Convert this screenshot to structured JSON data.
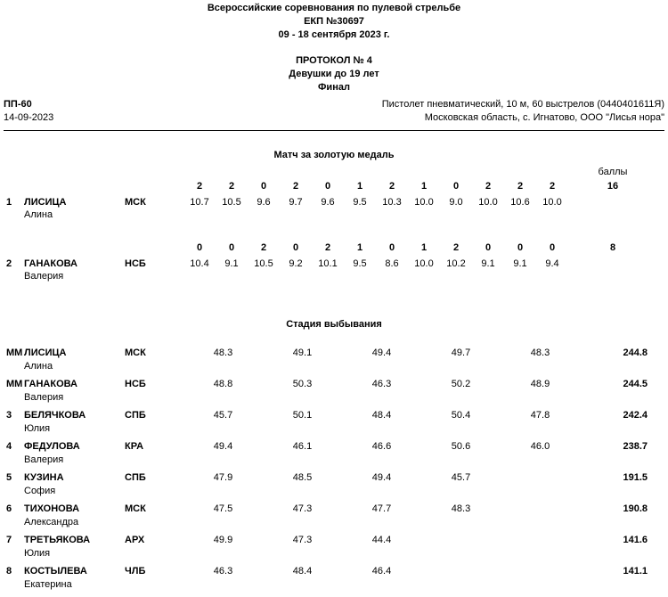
{
  "header": {
    "line1": "Всероссийские соревнования по пулевой стрельбе",
    "line2": "ЕКП №30697",
    "line3": "09 - 18 сентября 2023 г.",
    "protocol": "ПРОТОКОЛ № 4",
    "category": "Девушки до 19 лет",
    "stage": "Финал"
  },
  "info": {
    "event_code": "ПП-60",
    "date": "14-09-2023",
    "discipline": "Пистолет пневматический, 10 м, 60 выстрелов (0440401611Я)",
    "location": "Московская область, с. Игнатово, ООО \"Лисья нора\""
  },
  "gold_match": {
    "title": "Матч за золотую медаль",
    "points_label": "баллы",
    "athletes": [
      {
        "rank": "1",
        "last_name": "ЛИСИЦА",
        "first_name": "Алина",
        "region": "МСК",
        "points": [
          "2",
          "2",
          "0",
          "2",
          "0",
          "1",
          "2",
          "1",
          "0",
          "2",
          "2",
          "2"
        ],
        "shots": [
          "10.7",
          "10.5",
          "9.6",
          "9.7",
          "9.6",
          "9.5",
          "10.3",
          "10.0",
          "9.0",
          "10.0",
          "10.6",
          "10.0"
        ],
        "total_points": "16"
      },
      {
        "rank": "2",
        "last_name": "ГАНАКОВА",
        "first_name": "Валерия",
        "region": "НСБ",
        "points": [
          "0",
          "0",
          "2",
          "0",
          "2",
          "1",
          "0",
          "1",
          "2",
          "0",
          "0",
          "0"
        ],
        "shots": [
          "10.4",
          "9.1",
          "10.5",
          "9.2",
          "10.1",
          "9.5",
          "8.6",
          "10.0",
          "10.2",
          "9.1",
          "9.1",
          "9.4"
        ],
        "total_points": "8"
      }
    ]
  },
  "elimination": {
    "title": "Стадия выбывания",
    "athletes": [
      {
        "rank": "ММ",
        "last_name": "ЛИСИЦА",
        "first_name": "Алина",
        "region": "МСК",
        "series": [
          "48.3",
          "49.1",
          "49.4",
          "49.7",
          "48.3"
        ],
        "total": "244.8"
      },
      {
        "rank": "ММ",
        "last_name": "ГАНАКОВА",
        "first_name": "Валерия",
        "region": "НСБ",
        "series": [
          "48.8",
          "50.3",
          "46.3",
          "50.2",
          "48.9"
        ],
        "total": "244.5"
      },
      {
        "rank": "3",
        "last_name": "БЕЛЯЧКОВА",
        "first_name": "Юлия",
        "region": "СПБ",
        "series": [
          "45.7",
          "50.1",
          "48.4",
          "50.4",
          "47.8"
        ],
        "total": "242.4"
      },
      {
        "rank": "4",
        "last_name": "ФЕДУЛОВА",
        "first_name": "Валерия",
        "region": "КРА",
        "series": [
          "49.4",
          "46.1",
          "46.6",
          "50.6",
          "46.0"
        ],
        "total": "238.7"
      },
      {
        "rank": "5",
        "last_name": "КУЗИНА",
        "first_name": "София",
        "region": "СПБ",
        "series": [
          "47.9",
          "48.5",
          "49.4",
          "45.7"
        ],
        "total": "191.5"
      },
      {
        "rank": "6",
        "last_name": "ТИХОНОВА",
        "first_name": "Александра",
        "region": "МСК",
        "series": [
          "47.5",
          "47.3",
          "47.7",
          "48.3"
        ],
        "total": "190.8"
      },
      {
        "rank": "7",
        "last_name": "ТРЕТЬЯКОВА",
        "first_name": "Юлия",
        "region": "АРХ",
        "series": [
          "49.9",
          "47.3",
          "44.4"
        ],
        "total": "141.6"
      },
      {
        "rank": "8",
        "last_name": "КОСТЫЛЕВА",
        "first_name": "Екатерина",
        "region": "ЧЛБ",
        "series": [
          "46.3",
          "48.4",
          "46.4"
        ],
        "total": "141.1"
      }
    ]
  }
}
